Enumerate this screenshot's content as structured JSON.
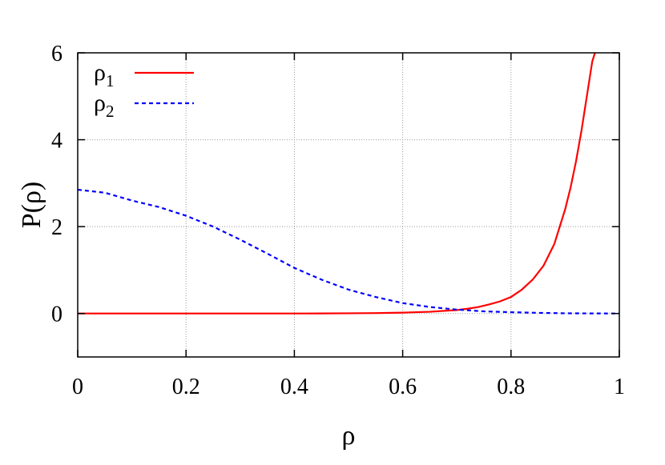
{
  "chart_data": {
    "type": "line",
    "title": "",
    "xlabel": "ρ",
    "ylabel": "P(ρ)",
    "xlim": [
      0,
      1
    ],
    "ylim": [
      -1,
      6
    ],
    "xticks": [
      0,
      0.2,
      0.4,
      0.6,
      0.8,
      1
    ],
    "xtick_labels": [
      "0",
      "0.2",
      "0.4",
      "0.6",
      "0.8",
      "1"
    ],
    "yticks": [
      0,
      2,
      4,
      6
    ],
    "ytick_labels": [
      "0",
      "2",
      "4",
      "6"
    ],
    "grid": true,
    "legend_position": "top-left",
    "series": [
      {
        "name": "ρ1",
        "name_base": "ρ",
        "name_sub": "1",
        "color": "#ff0000",
        "style": "solid",
        "x": [
          0,
          0.1,
          0.2,
          0.3,
          0.4,
          0.45,
          0.5,
          0.55,
          0.6,
          0.65,
          0.7,
          0.72,
          0.74,
          0.76,
          0.78,
          0.8,
          0.82,
          0.84,
          0.86,
          0.88,
          0.9,
          0.91,
          0.92,
          0.93,
          0.94,
          0.95,
          0.955
        ],
        "y": [
          0,
          0,
          0,
          0,
          0,
          0.002,
          0.005,
          0.01,
          0.02,
          0.04,
          0.08,
          0.11,
          0.15,
          0.21,
          0.28,
          0.38,
          0.55,
          0.78,
          1.1,
          1.6,
          2.4,
          2.9,
          3.5,
          4.2,
          5.0,
          5.8,
          6.0
        ]
      },
      {
        "name": "ρ2",
        "name_base": "ρ",
        "name_sub": "2",
        "color": "#0000ff",
        "style": "dashed",
        "x": [
          0,
          0.05,
          0.1,
          0.15,
          0.2,
          0.25,
          0.3,
          0.35,
          0.4,
          0.45,
          0.5,
          0.55,
          0.6,
          0.65,
          0.7,
          0.75,
          0.8,
          0.85,
          0.9,
          0.95,
          1.0
        ],
        "y": [
          2.85,
          2.78,
          2.6,
          2.45,
          2.25,
          2.0,
          1.7,
          1.38,
          1.05,
          0.78,
          0.55,
          0.38,
          0.24,
          0.15,
          0.09,
          0.05,
          0.03,
          0.015,
          0.005,
          0.002,
          0.0
        ]
      }
    ]
  }
}
